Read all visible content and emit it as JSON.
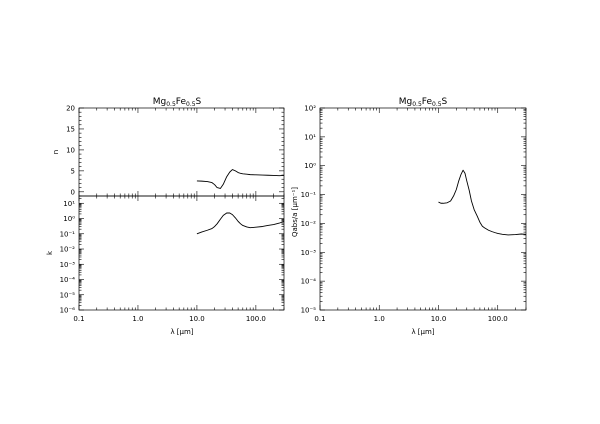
{
  "chart_data": [
    {
      "type": "line",
      "panel": "n",
      "title": "Mg0.5Fe0.5S",
      "title_parts": {
        "base1": "Mg",
        "sub1": "0.5",
        "base2": "Fe",
        "sub2": "0.5",
        "base3": "S"
      },
      "xlabel": "",
      "ylabel": "n",
      "xscale": "log",
      "yscale": "linear",
      "xlim": [
        0.1,
        300
      ],
      "ylim": [
        -1,
        20
      ],
      "xticks": [],
      "yticks": [
        "0",
        "5",
        "10",
        "15",
        "20"
      ],
      "ytick_values": [
        0,
        5,
        10,
        15,
        20
      ],
      "series": [
        {
          "x": [
            10,
            12,
            15,
            18,
            20,
            22,
            25,
            28,
            32,
            36,
            40,
            45,
            50,
            55,
            60,
            70,
            80,
            100,
            130,
            160,
            200,
            250,
            300
          ],
          "y": [
            2.6,
            2.55,
            2.45,
            2.2,
            1.7,
            1.0,
            0.8,
            1.8,
            3.6,
            4.7,
            5.3,
            5.0,
            4.6,
            4.4,
            4.3,
            4.2,
            4.1,
            4.05,
            4.0,
            3.95,
            3.9,
            3.85,
            3.9
          ]
        }
      ]
    },
    {
      "type": "line",
      "panel": "k",
      "xlabel": "λ [μm]",
      "ylabel": "k",
      "xscale": "log",
      "yscale": "log",
      "xlim": [
        0.1,
        300
      ],
      "ylim": [
        1e-06,
        30
      ],
      "xticks": [
        "0.1",
        "1.0",
        "10.0",
        "100.0"
      ],
      "xtick_values": [
        0.1,
        1,
        10,
        100
      ],
      "yticks": [
        "10⁻⁶",
        "10⁻⁵",
        "10⁻⁴",
        "10⁻³",
        "10⁻²",
        "10⁻¹",
        "10⁰",
        "10¹"
      ],
      "ytick_values": [
        1e-06,
        1e-05,
        0.0001,
        0.001,
        0.01,
        0.1,
        1,
        10
      ],
      "series": [
        {
          "x": [
            10,
            12,
            15,
            18,
            20,
            22,
            25,
            28,
            32,
            36,
            40,
            45,
            50,
            55,
            60,
            70,
            80,
            100,
            130,
            160,
            200,
            250,
            300
          ],
          "y": [
            0.1,
            0.13,
            0.17,
            0.22,
            0.3,
            0.45,
            0.9,
            1.6,
            2.3,
            2.3,
            1.8,
            1.1,
            0.65,
            0.45,
            0.35,
            0.28,
            0.25,
            0.27,
            0.3,
            0.35,
            0.4,
            0.5,
            0.65
          ]
        }
      ]
    },
    {
      "type": "line",
      "panel": "qabs",
      "title": "Mg0.5Fe0.5S",
      "title_parts": {
        "base1": "Mg",
        "sub1": "0.5",
        "base2": "Fe",
        "sub2": "0.5",
        "base3": "S"
      },
      "xlabel": "λ [μm]",
      "ylabel": "Qabs/a [μm⁻¹]",
      "xscale": "log",
      "yscale": "log",
      "xlim": [
        0.1,
        300
      ],
      "ylim": [
        1e-05,
        100
      ],
      "xticks": [
        "0.1",
        "1.0",
        "10.0",
        "100.0"
      ],
      "xtick_values": [
        0.1,
        1,
        10,
        100
      ],
      "yticks": [
        "10⁻⁵",
        "10⁻⁴",
        "10⁻³",
        "10⁻²",
        "10⁻¹",
        "10⁰",
        "10¹",
        "10²"
      ],
      "ytick_values": [
        1e-05,
        0.0001,
        0.001,
        0.01,
        0.1,
        1,
        10,
        100
      ],
      "series": [
        {
          "x": [
            10,
            11,
            12,
            14,
            16,
            18,
            20,
            22,
            24,
            26,
            28,
            30,
            33,
            36,
            40,
            45,
            50,
            55,
            60,
            70,
            80,
            90,
            100,
            120,
            150,
            200,
            250,
            300
          ],
          "y": [
            0.055,
            0.05,
            0.05,
            0.052,
            0.06,
            0.09,
            0.15,
            0.3,
            0.5,
            0.7,
            0.55,
            0.3,
            0.14,
            0.06,
            0.03,
            0.018,
            0.011,
            0.008,
            0.007,
            0.0058,
            0.0052,
            0.0048,
            0.0045,
            0.0042,
            0.004,
            0.0041,
            0.0043,
            0.0042
          ]
        }
      ]
    }
  ]
}
